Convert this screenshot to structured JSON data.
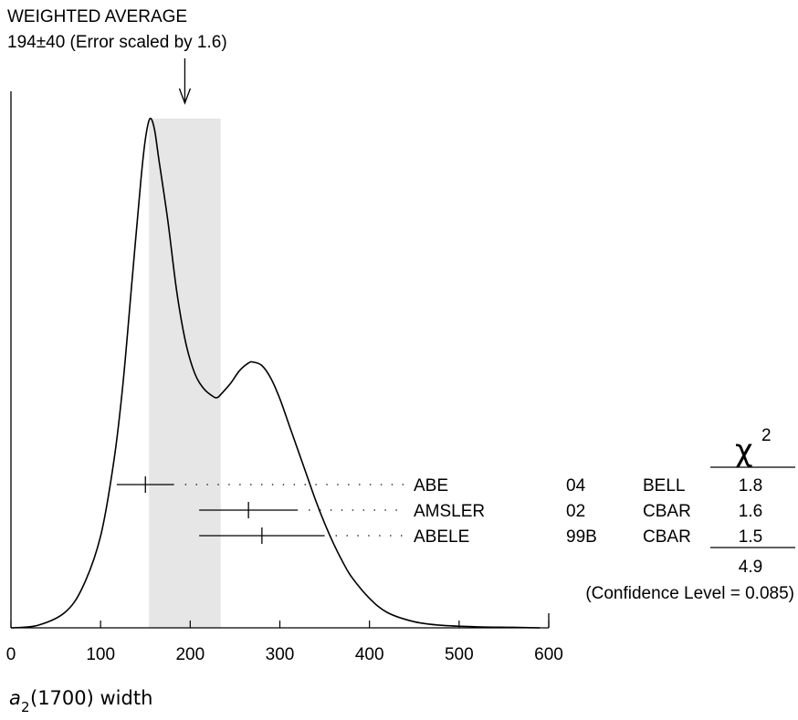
{
  "header": {
    "line1": "WEIGHTED AVERAGE",
    "line2": "194±40 (Error scaled by 1.6)"
  },
  "chart_data": {
    "type": "ideogram",
    "xlabel_main": "a",
    "xlabel_sub": "2",
    "xlabel_paren": "(1700) width",
    "xlim": [
      0,
      600
    ],
    "x_ticks": [
      "0",
      "100",
      "200",
      "300",
      "400",
      "500",
      "600"
    ],
    "weighted_average": {
      "value": 194,
      "error": 40,
      "band": [
        154,
        234
      ]
    },
    "curve": {
      "x": [
        0,
        30,
        60,
        80,
        100,
        115,
        125,
        135,
        145,
        150,
        155,
        160,
        165,
        175,
        185,
        195,
        205,
        215,
        225,
        230,
        235,
        245,
        255,
        265,
        270,
        280,
        290,
        300,
        310,
        320,
        330,
        340,
        350,
        360,
        370,
        380,
        400,
        420,
        450,
        480,
        520,
        560,
        590
      ],
      "y": [
        0.0,
        0.005,
        0.03,
        0.08,
        0.18,
        0.33,
        0.48,
        0.68,
        0.88,
        0.96,
        1.0,
        0.98,
        0.92,
        0.8,
        0.66,
        0.56,
        0.5,
        0.47,
        0.455,
        0.452,
        0.46,
        0.48,
        0.505,
        0.52,
        0.522,
        0.515,
        0.49,
        0.45,
        0.4,
        0.35,
        0.3,
        0.25,
        0.205,
        0.165,
        0.13,
        0.1,
        0.058,
        0.03,
        0.012,
        0.005,
        0.002,
        0.001,
        0.0
      ]
    },
    "measurements": [
      {
        "value": 150,
        "low": 118,
        "high": 182,
        "name": "ABE",
        "year": "04",
        "expt": "BELL",
        "chi2": "1.8"
      },
      {
        "value": 265,
        "low": 210,
        "high": 320,
        "name": "AMSLER",
        "year": "02",
        "expt": "CBAR",
        "chi2": "1.6"
      },
      {
        "value": 280,
        "low": 210,
        "high": 350,
        "name": "ABELE",
        "year": "99B",
        "expt": "CBAR",
        "chi2": "1.5"
      }
    ],
    "chi2_header": "χ",
    "chi2_exponent": "2",
    "chi2_total": "4.9",
    "confidence": "(Confidence Level = 0.085)"
  }
}
